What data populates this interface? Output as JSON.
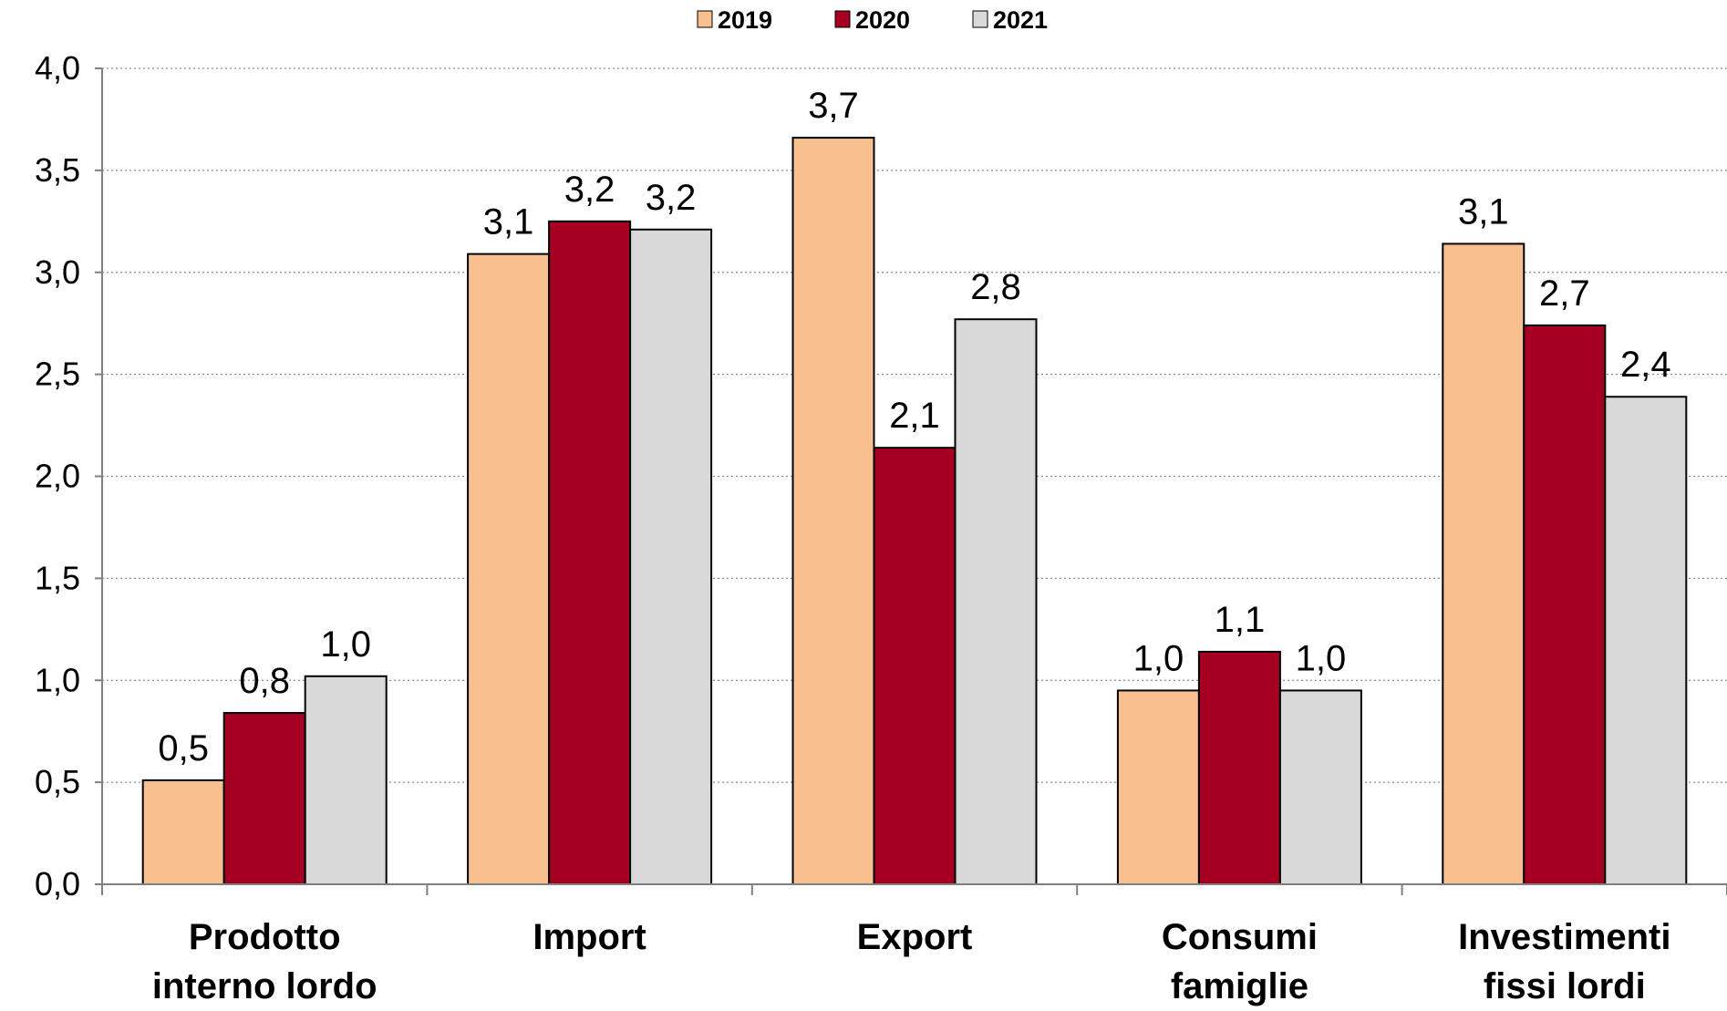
{
  "chart_data": {
    "type": "bar",
    "categories": [
      [
        "Prodotto",
        "interno lordo"
      ],
      [
        "Import"
      ],
      [
        "Export"
      ],
      [
        "Consumi",
        "famiglie"
      ],
      [
        "Investimenti",
        "fissi lordi"
      ]
    ],
    "series": [
      {
        "name": "2019",
        "color": "#F9C08F",
        "values": [
          0.51,
          3.09,
          3.66,
          0.95,
          3.14
        ],
        "labels": [
          "0,5",
          "3,1",
          "3,7",
          "1,0",
          "3,1"
        ]
      },
      {
        "name": "2020",
        "color": "#A50021",
        "values": [
          0.84,
          3.25,
          2.14,
          1.14,
          2.74
        ],
        "labels": [
          "0,8",
          "3,2",
          "2,1",
          "1,1",
          "2,7"
        ]
      },
      {
        "name": "2021",
        "color": "#D9D9D9",
        "values": [
          1.02,
          3.21,
          2.77,
          0.95,
          2.39
        ],
        "labels": [
          "1,0",
          "3,2",
          "2,8",
          "1,0",
          "2,4"
        ]
      }
    ],
    "ylim": [
      0,
      4
    ],
    "yticks": [
      "0,0",
      "0,5",
      "1,0",
      "1,5",
      "2,0",
      "2,5",
      "3,0",
      "3,5",
      "4,0"
    ],
    "grid": true,
    "legend_position": "top"
  }
}
